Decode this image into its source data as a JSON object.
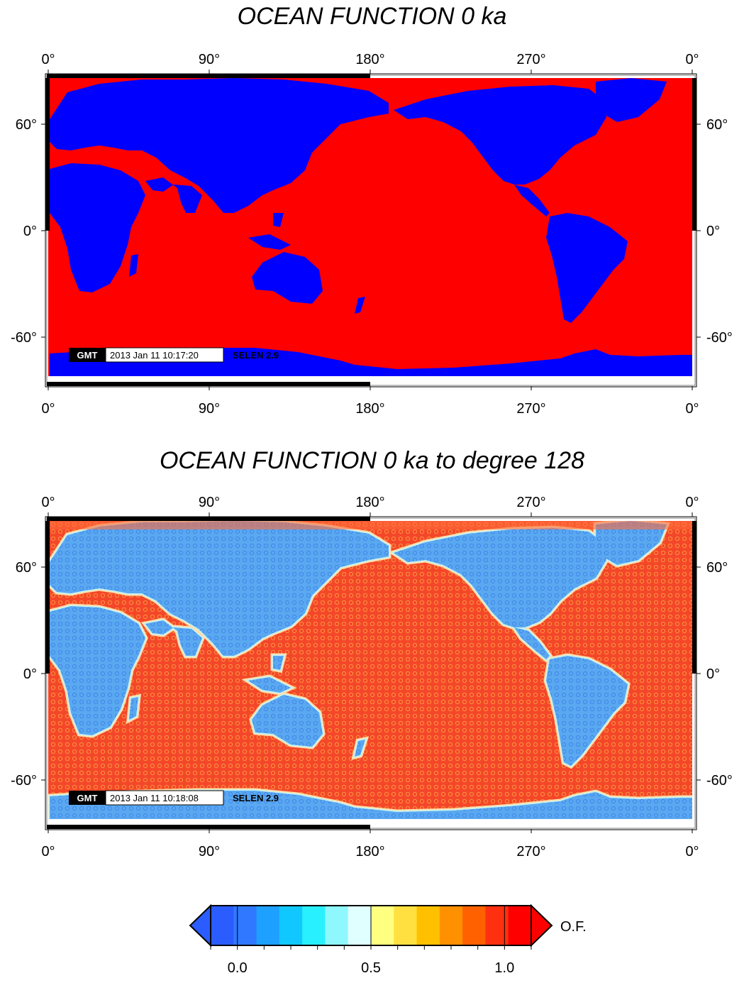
{
  "maps": [
    {
      "title": "OCEAN FUNCTION 0 ka",
      "lon_ticks": [
        "0°",
        "90°",
        "180°",
        "270°",
        "0°"
      ],
      "lat_ticks": [
        "60°",
        "0°",
        "-60°"
      ],
      "gmt_logo": "GMT",
      "timestamp": "2013 Jan 11 10:17:20",
      "tag": "SELEN 2.9",
      "colors": {
        "ocean": "#ff0000",
        "land": "#0000ff"
      }
    },
    {
      "title": "OCEAN FUNCTION 0 ka to degree 128",
      "lon_ticks": [
        "0°",
        "90°",
        "180°",
        "270°",
        "0°"
      ],
      "lat_ticks": [
        "60°",
        "0°",
        "-60°"
      ],
      "gmt_logo": "GMT",
      "timestamp": "2013 Jan 11 10:18:08",
      "tag": "SELEN 2.9",
      "colors": {
        "ocean": "#f4472a",
        "land": "#5aa8f0"
      }
    }
  ],
  "colorbar": {
    "label": "O.F.",
    "tick_labels": [
      "0.0",
      "0.5",
      "1.0"
    ],
    "range": [
      -0.1,
      1.1
    ],
    "colors": [
      "#2a5cff",
      "#2f78ff",
      "#1da0ff",
      "#10c8ff",
      "#28f0ff",
      "#8ff8ff",
      "#e0ffff",
      "#ffff80",
      "#ffe040",
      "#ffc000",
      "#ff9000",
      "#ff6000",
      "#ff3010",
      "#ff0000"
    ]
  }
}
